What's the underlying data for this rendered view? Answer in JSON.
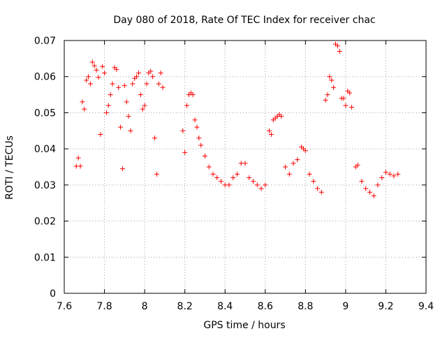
{
  "chart_data": {
    "type": "scatter",
    "title": "Day 080 of 2018, Rate Of TEC Index for receiver chac",
    "xlabel": "GPS time / hours",
    "ylabel": "ROTI / TECUs",
    "xlim": [
      7.6,
      9.4
    ],
    "ylim": [
      0,
      0.07
    ],
    "x_ticks": [
      7.6,
      7.8,
      8.0,
      8.2,
      8.4,
      8.6,
      8.8,
      9.0,
      9.2,
      9.4
    ],
    "x_tick_labels": [
      "7.6",
      "7.8",
      "8",
      "8.2",
      "8.4",
      "8.6",
      "8.8",
      "9",
      "9.2",
      "9.4"
    ],
    "y_ticks": [
      0,
      0.01,
      0.02,
      0.03,
      0.04,
      0.05,
      0.06,
      0.07
    ],
    "y_tick_labels": [
      "0",
      "0.01",
      "0.02",
      "0.03",
      "0.04",
      "0.05",
      "0.06",
      "0.07"
    ],
    "grid": true,
    "marker": "+",
    "color": "#ff0000",
    "series": [
      {
        "name": "ROTI",
        "points": [
          [
            7.66,
            0.0352
          ],
          [
            7.67,
            0.0375
          ],
          [
            7.68,
            0.0352
          ],
          [
            7.69,
            0.053
          ],
          [
            7.7,
            0.051
          ],
          [
            7.71,
            0.059
          ],
          [
            7.72,
            0.06
          ],
          [
            7.73,
            0.058
          ],
          [
            7.74,
            0.064
          ],
          [
            7.75,
            0.063
          ],
          [
            7.76,
            0.0618
          ],
          [
            7.77,
            0.0598
          ],
          [
            7.78,
            0.044
          ],
          [
            7.79,
            0.0628
          ],
          [
            7.8,
            0.061
          ],
          [
            7.81,
            0.05
          ],
          [
            7.82,
            0.052
          ],
          [
            7.83,
            0.055
          ],
          [
            7.84,
            0.058
          ],
          [
            7.85,
            0.0625
          ],
          [
            7.86,
            0.062
          ],
          [
            7.87,
            0.057
          ],
          [
            7.88,
            0.046
          ],
          [
            7.89,
            0.0345
          ],
          [
            7.9,
            0.0575
          ],
          [
            7.91,
            0.053
          ],
          [
            7.92,
            0.049
          ],
          [
            7.93,
            0.045
          ],
          [
            7.94,
            0.058
          ],
          [
            7.95,
            0.0595
          ],
          [
            7.96,
            0.06
          ],
          [
            7.97,
            0.061
          ],
          [
            7.98,
            0.055
          ],
          [
            7.99,
            0.051
          ],
          [
            8.0,
            0.052
          ],
          [
            8.01,
            0.058
          ],
          [
            8.02,
            0.061
          ],
          [
            8.03,
            0.0615
          ],
          [
            8.04,
            0.06
          ],
          [
            8.05,
            0.043
          ],
          [
            8.06,
            0.033
          ],
          [
            8.07,
            0.058
          ],
          [
            8.08,
            0.061
          ],
          [
            8.09,
            0.057
          ],
          [
            8.19,
            0.045
          ],
          [
            8.2,
            0.039
          ],
          [
            8.21,
            0.052
          ],
          [
            8.22,
            0.055
          ],
          [
            8.23,
            0.0555
          ],
          [
            8.24,
            0.055
          ],
          [
            8.25,
            0.048
          ],
          [
            8.26,
            0.046
          ],
          [
            8.27,
            0.043
          ],
          [
            8.28,
            0.041
          ],
          [
            8.3,
            0.038
          ],
          [
            8.32,
            0.035
          ],
          [
            8.34,
            0.033
          ],
          [
            8.36,
            0.032
          ],
          [
            8.38,
            0.031
          ],
          [
            8.4,
            0.03
          ],
          [
            8.42,
            0.03
          ],
          [
            8.44,
            0.032
          ],
          [
            8.46,
            0.033
          ],
          [
            8.48,
            0.036
          ],
          [
            8.5,
            0.036
          ],
          [
            8.52,
            0.032
          ],
          [
            8.54,
            0.031
          ],
          [
            8.56,
            0.03
          ],
          [
            8.58,
            0.029
          ],
          [
            8.6,
            0.03
          ],
          [
            8.62,
            0.045
          ],
          [
            8.63,
            0.044
          ],
          [
            8.64,
            0.048
          ],
          [
            8.65,
            0.0485
          ],
          [
            8.66,
            0.049
          ],
          [
            8.67,
            0.0495
          ],
          [
            8.68,
            0.049
          ],
          [
            8.7,
            0.035
          ],
          [
            8.72,
            0.033
          ],
          [
            8.74,
            0.036
          ],
          [
            8.76,
            0.037
          ],
          [
            8.78,
            0.0405
          ],
          [
            8.79,
            0.04
          ],
          [
            8.8,
            0.0395
          ],
          [
            8.82,
            0.033
          ],
          [
            8.84,
            0.031
          ],
          [
            8.86,
            0.029
          ],
          [
            8.88,
            0.028
          ],
          [
            8.9,
            0.0535
          ],
          [
            8.91,
            0.055
          ],
          [
            8.92,
            0.06
          ],
          [
            8.93,
            0.059
          ],
          [
            8.94,
            0.057
          ],
          [
            8.95,
            0.069
          ],
          [
            8.96,
            0.0685
          ],
          [
            8.97,
            0.067
          ],
          [
            8.98,
            0.054
          ],
          [
            8.99,
            0.054
          ],
          [
            9.0,
            0.052
          ],
          [
            9.01,
            0.056
          ],
          [
            9.02,
            0.0555
          ],
          [
            9.03,
            0.0515
          ],
          [
            9.05,
            0.035
          ],
          [
            9.06,
            0.0355
          ],
          [
            9.08,
            0.031
          ],
          [
            9.1,
            0.029
          ],
          [
            9.12,
            0.028
          ],
          [
            9.14,
            0.027
          ],
          [
            9.16,
            0.03
          ],
          [
            9.18,
            0.032
          ],
          [
            9.2,
            0.0335
          ],
          [
            9.22,
            0.033
          ],
          [
            9.24,
            0.0325
          ],
          [
            9.26,
            0.033
          ]
        ]
      }
    ]
  }
}
